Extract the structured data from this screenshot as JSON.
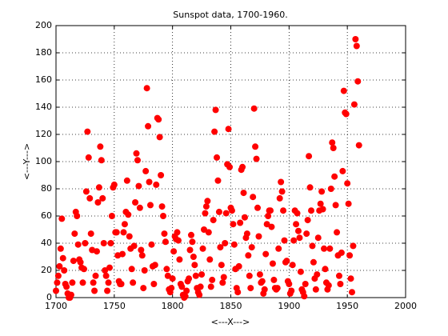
{
  "chart_data": {
    "type": "scatter",
    "title": "Sunspot data, 1700-1960.",
    "x_label": "<---X--->",
    "y_label": "<---Y--->",
    "color": "#ff0000",
    "grid": true,
    "xlim": [
      1700,
      2000
    ],
    "xticks": [
      1700,
      1750,
      1800,
      1850,
      1900,
      1950,
      2000
    ],
    "ylim": [
      0,
      200
    ],
    "yticks": [
      0,
      20,
      40,
      60,
      80,
      100,
      120,
      140,
      160,
      180,
      200
    ],
    "x": [
      1700,
      1701,
      1702,
      1703,
      1704,
      1705,
      1706,
      1707,
      1708,
      1709,
      1710,
      1711,
      1712,
      1713,
      1714,
      1715,
      1716,
      1717,
      1718,
      1719,
      1720,
      1721,
      1722,
      1723,
      1724,
      1725,
      1726,
      1727,
      1728,
      1729,
      1730,
      1731,
      1732,
      1733,
      1734,
      1735,
      1736,
      1737,
      1738,
      1739,
      1740,
      1741,
      1742,
      1743,
      1744,
      1745,
      1746,
      1747,
      1748,
      1749,
      1750,
      1751,
      1752,
      1753,
      1754,
      1755,
      1756,
      1757,
      1758,
      1759,
      1760,
      1761,
      1762,
      1763,
      1764,
      1765,
      1766,
      1767,
      1768,
      1769,
      1770,
      1771,
      1772,
      1773,
      1774,
      1775,
      1776,
      1777,
      1778,
      1779,
      1780,
      1781,
      1782,
      1783,
      1784,
      1785,
      1786,
      1787,
      1788,
      1789,
      1790,
      1791,
      1792,
      1793,
      1794,
      1795,
      1796,
      1797,
      1798,
      1799,
      1800,
      1801,
      1802,
      1803,
      1804,
      1805,
      1806,
      1807,
      1808,
      1809,
      1810,
      1811,
      1812,
      1813,
      1814,
      1815,
      1816,
      1817,
      1818,
      1819,
      1820,
      1821,
      1822,
      1823,
      1824,
      1825,
      1826,
      1827,
      1828,
      1829,
      1830,
      1831,
      1832,
      1833,
      1834,
      1835,
      1836,
      1837,
      1838,
      1839,
      1840,
      1841,
      1842,
      1843,
      1844,
      1845,
      1846,
      1847,
      1848,
      1849,
      1850,
      1851,
      1852,
      1853,
      1854,
      1855,
      1856,
      1857,
      1858,
      1859,
      1860,
      1861,
      1862,
      1863,
      1864,
      1865,
      1866,
      1867,
      1868,
      1869,
      1870,
      1871,
      1872,
      1873,
      1874,
      1875,
      1876,
      1877,
      1878,
      1879,
      1880,
      1881,
      1882,
      1883,
      1884,
      1885,
      1886,
      1887,
      1888,
      1889,
      1890,
      1891,
      1892,
      1893,
      1894,
      1895,
      1896,
      1897,
      1898,
      1899,
      1900,
      1901,
      1902,
      1903,
      1904,
      1905,
      1906,
      1907,
      1908,
      1909,
      1910,
      1911,
      1912,
      1913,
      1914,
      1915,
      1916,
      1917,
      1918,
      1919,
      1920,
      1921,
      1922,
      1923,
      1924,
      1925,
      1926,
      1927,
      1928,
      1929,
      1930,
      1931,
      1932,
      1933,
      1934,
      1935,
      1936,
      1937,
      1938,
      1939,
      1940,
      1941,
      1942,
      1943,
      1944,
      1945,
      1946,
      1947,
      1948,
      1949,
      1950,
      1951,
      1952,
      1953,
      1954,
      1955,
      1956,
      1957,
      1958,
      1959,
      1960
    ],
    "values": [
      5,
      11,
      16,
      23,
      36,
      58,
      29,
      20,
      10,
      8,
      3,
      0,
      0,
      2,
      11,
      27,
      47,
      63,
      60,
      39,
      28,
      26,
      22,
      11,
      21,
      40,
      78,
      122,
      103,
      73,
      47,
      35,
      11,
      5,
      16,
      34,
      70,
      81,
      111,
      101,
      73,
      40,
      20,
      16,
      5,
      11,
      22,
      40,
      60,
      81,
      83,
      48,
      48,
      31,
      12,
      10,
      10,
      32,
      48,
      54,
      63,
      86,
      61,
      45,
      36,
      21,
      11,
      38,
      70,
      106,
      101,
      82,
      66,
      35,
      31,
      7,
      20,
      93,
      154,
      126,
      85,
      68,
      39,
      23,
      10,
      24,
      83,
      132,
      131,
      118,
      90,
      67,
      60,
      47,
      41,
      21,
      16,
      6,
      4,
      7,
      14,
      34,
      45,
      43,
      48,
      42,
      28,
      10,
      8,
      2,
      0,
      1,
      5,
      12,
      14,
      35,
      46,
      41,
      30,
      24,
      16,
      7,
      4,
      2,
      8,
      17,
      36,
      50,
      62,
      67,
      71,
      48,
      28,
      8,
      13,
      57,
      122,
      138,
      103,
      86,
      63,
      37,
      24,
      11,
      15,
      40,
      62,
      98,
      124,
      96,
      66,
      64,
      54,
      39,
      21,
      7,
      4,
      23,
      55,
      94,
      96,
      77,
      59,
      44,
      47,
      31,
      16,
      7,
      37,
      74,
      139,
      111,
      102,
      66,
      45,
      17,
      11,
      12,
      3,
      6,
      32,
      54,
      60,
      64,
      64,
      52,
      25,
      13,
      7,
      6,
      7,
      36,
      73,
      85,
      78,
      64,
      42,
      26,
      27,
      12,
      10,
      3,
      5,
      24,
      42,
      64,
      54,
      62,
      49,
      44,
      19,
      6,
      4,
      1,
      10,
      47,
      57,
      104,
      81,
      64,
      38,
      26,
      14,
      6,
      17,
      44,
      64,
      69,
      78,
      65,
      36,
      21,
      11,
      6,
      9,
      36,
      80,
      114,
      110,
      89,
      68,
      48,
      31,
      16,
      10,
      33,
      93,
      152,
      136,
      135,
      84,
      69,
      31,
      14,
      4,
      38,
      142,
      190,
      185,
      159,
      112
    ]
  }
}
